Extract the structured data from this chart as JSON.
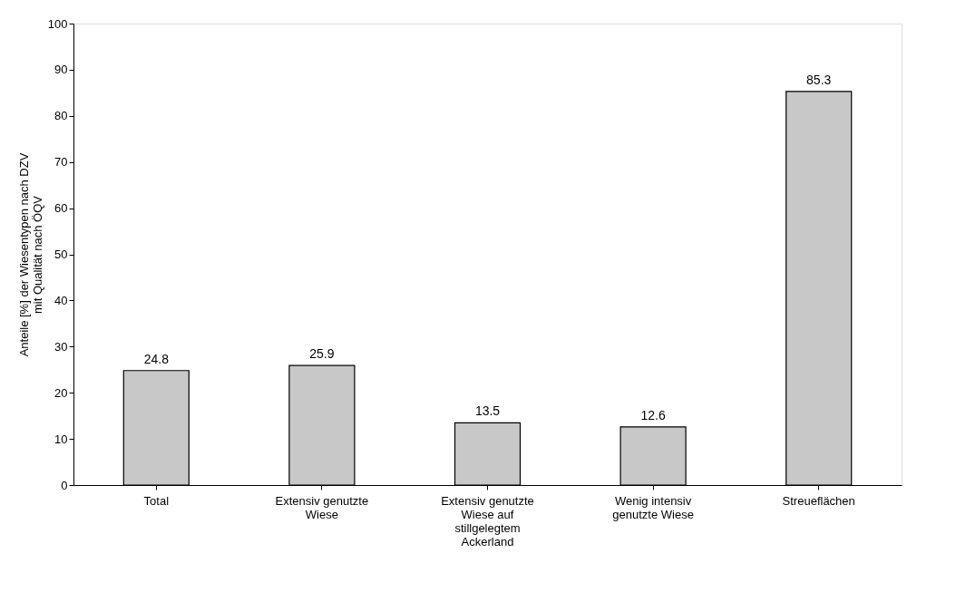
{
  "chart_data": {
    "type": "bar",
    "ylabel": "Anteile [%] der Wiesentypen nach DZV\nmit Qualität nach ÖQV",
    "categories": [
      "Total",
      "Extensiv genutzte\nWiese",
      "Extensiv genutzte\nWiese auf\nstillgelegtem\nAckerland",
      "Wenig intensiv\ngenutzte Wiese",
      "Streueflächen"
    ],
    "values": [
      24.8,
      25.9,
      13.5,
      12.6,
      85.3
    ],
    "color": "#c8c8c8",
    "ylim": [
      0,
      100
    ],
    "yticks": [
      0,
      10,
      20,
      30,
      40,
      50,
      60,
      70,
      80,
      90,
      100
    ],
    "grid": false,
    "data_labels": true
  }
}
